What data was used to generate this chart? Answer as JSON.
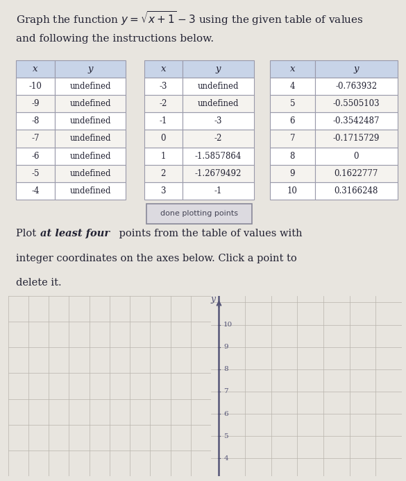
{
  "table1": {
    "x": [
      "-10",
      "-9",
      "-8",
      "-7",
      "-6",
      "-5",
      "-4"
    ],
    "y": [
      "undefined",
      "undefined",
      "undefined",
      "undefined",
      "undefined",
      "undefined",
      "undefined"
    ]
  },
  "table2": {
    "x": [
      "-3",
      "-2",
      "-1",
      "0",
      "1",
      "2",
      "3"
    ],
    "y": [
      "undefined",
      "undefined",
      "-3",
      "-2",
      "-1.5857864",
      "-1.2679492",
      "-1"
    ]
  },
  "table3": {
    "x": [
      "4",
      "5",
      "6",
      "7",
      "8",
      "9",
      "10"
    ],
    "y": [
      "-0.763932",
      "-0.5505103",
      "-0.3542487",
      "-0.1715729",
      "0",
      "0.1622777",
      "0.3166248"
    ]
  },
  "button_text": "done plotting points",
  "graph_yticks": [
    "10",
    "9",
    "8",
    "7",
    "6",
    "5",
    "4"
  ],
  "bg_color": "#e8e5df",
  "table_header_bg": "#c8d4e8",
  "table_row_bg": "#f0eeea",
  "table_alt_bg": "#e8e5df",
  "border_color": "#9999aa",
  "text_color": "#222233",
  "axis_color": "#555577",
  "grid_color": "#bbbbcc",
  "graph_bg": "#dedad4",
  "graph_left_bg": "#ccc8c0"
}
